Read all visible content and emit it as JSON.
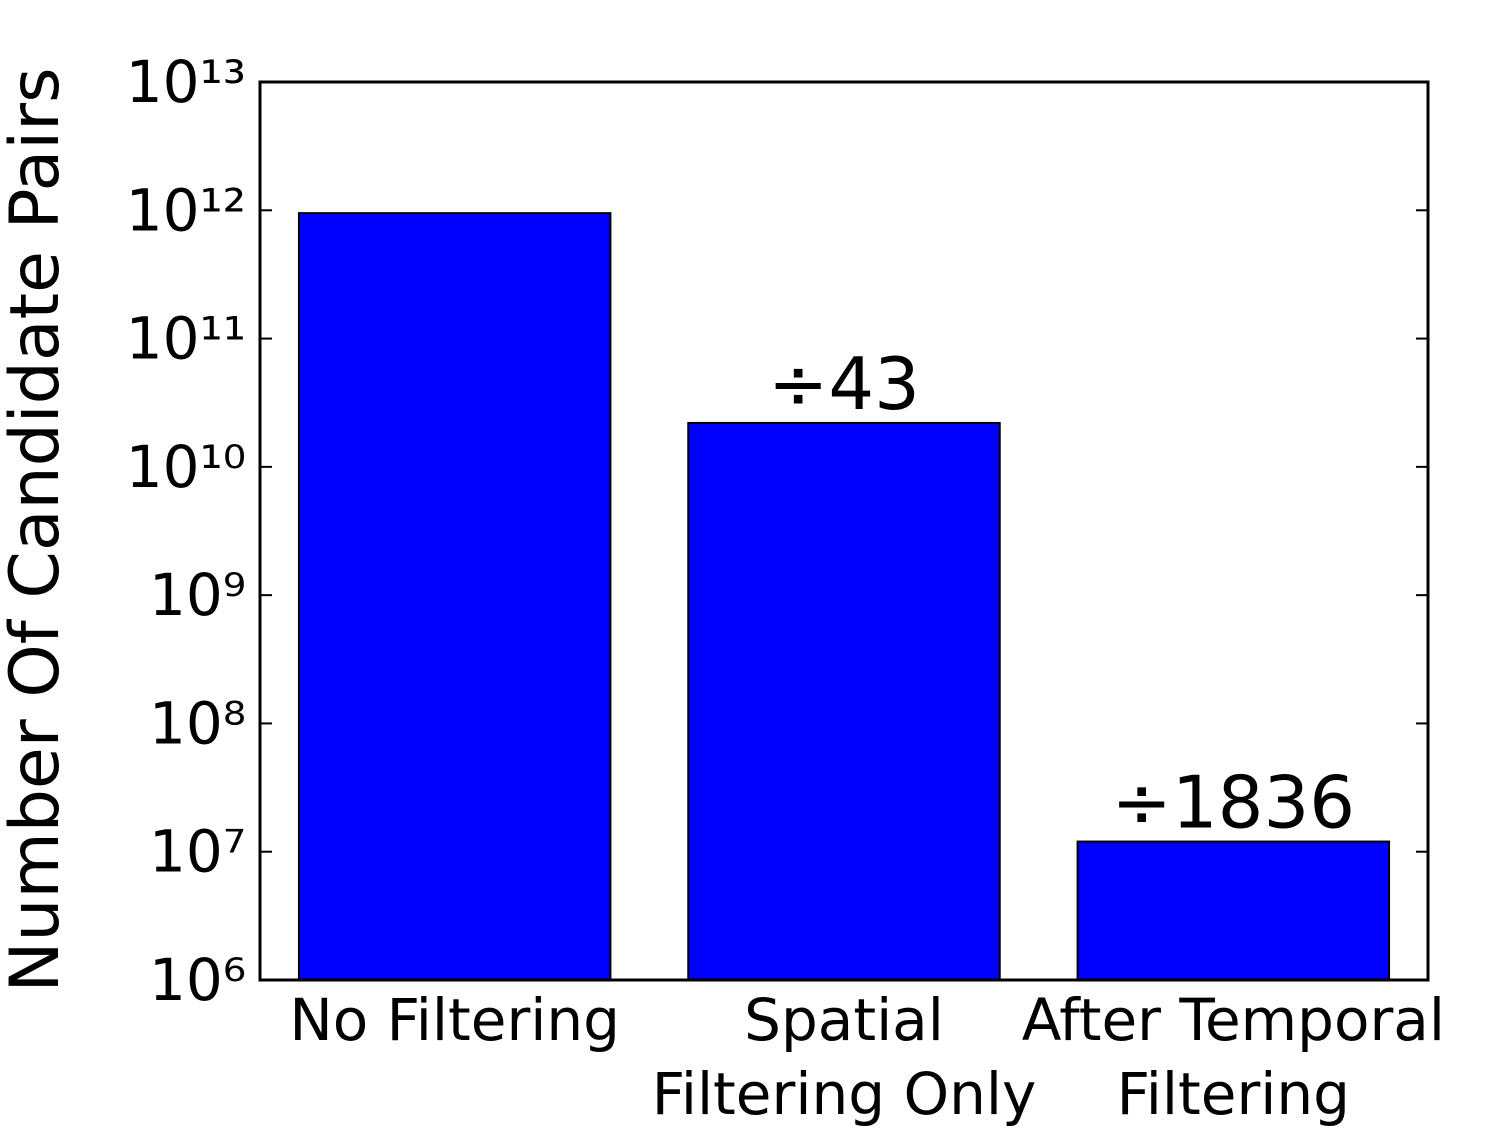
{
  "chart_data": {
    "type": "bar",
    "ylabel": "Number Of Candidate Pairs",
    "categories": [
      [
        "No Filtering"
      ],
      [
        "Spatial",
        "Filtering Only"
      ],
      [
        "After Temporal",
        "Filtering"
      ]
    ],
    "values": [
      950000000000,
      22000000000,
      12000000
    ],
    "annotations": [
      null,
      "÷43",
      "÷1836"
    ],
    "color": "#0000ff",
    "log_scale": true,
    "ylim": [
      1000000,
      10000000000000
    ],
    "yticks": [
      {
        "value": 1000000,
        "label": "10⁶"
      },
      {
        "value": 10000000,
        "label": "10⁷"
      },
      {
        "value": 100000000,
        "label": "10⁸"
      },
      {
        "value": 1000000000,
        "label": "10⁹"
      },
      {
        "value": 10000000000,
        "label": "10¹⁰"
      },
      {
        "value": 100000000000,
        "label": "10¹¹"
      },
      {
        "value": 1000000000000,
        "label": "10¹²"
      },
      {
        "value": 10000000000000,
        "label": "10¹³"
      }
    ],
    "grid": false
  }
}
